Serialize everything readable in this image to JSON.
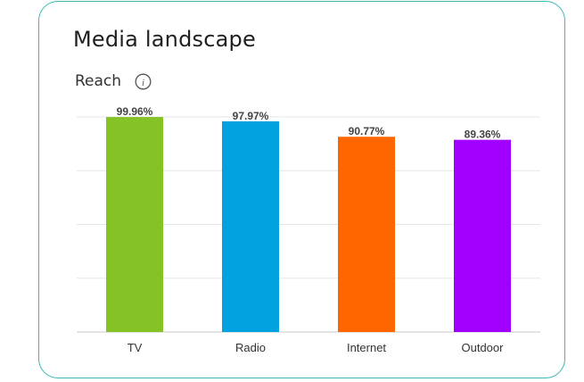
{
  "card": {
    "title": "Media landscape",
    "subtitle": "Reach",
    "info_icon": "info-icon"
  },
  "colors": {
    "border": "#39b8b4",
    "grid": "#e6e6e6",
    "axis": "#c8c8c8"
  },
  "chart_data": {
    "type": "bar",
    "title": "",
    "xlabel": "",
    "ylabel": "",
    "categories": [
      "TV",
      "Radio",
      "Internet",
      "Outdoor"
    ],
    "values": [
      99.96,
      97.97,
      90.77,
      89.36
    ],
    "data_labels": [
      "99.96%",
      "97.97%",
      "90.77%",
      "89.36%"
    ],
    "colors": [
      "#84c225",
      "#00a3e0",
      "#ff6600",
      "#a100ff"
    ],
    "ylim": [
      0,
      100
    ],
    "grid": true,
    "legend": "none"
  }
}
